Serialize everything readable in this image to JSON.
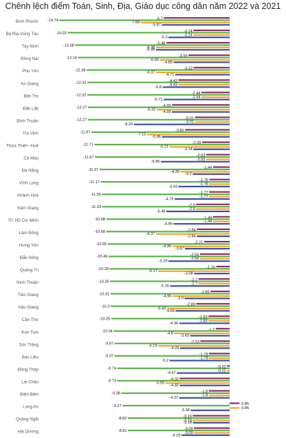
{
  "chart_data": {
    "type": "bar",
    "orientation": "horizontal",
    "title": "Chênh lệch điểm Toán, Sinh, Địa, Giáo dục công dân năm 2022 và 2021",
    "xlim": [
      -15,
      1
    ],
    "categories": [
      "Bình Phước",
      "Bà Rịa-Vũng Tàu",
      "Tây Ninh",
      "Đồng Nai",
      "Phú Yên",
      "An Giang",
      "Bến Tre",
      "Đắk Lắk",
      "Bình Thuận",
      "Trà Vinh",
      "Thừa Thiên -Huế",
      "Cà Mau",
      "Đà Nẵng",
      "Vĩnh Long",
      "Khánh Hoà",
      "Kiên Giang",
      "TP. Hồ Chí Minh",
      "Lâm Đồng",
      "Hưng Yên",
      "Đắk Nông",
      "Quảng Trị",
      "Ninh Thuận",
      "Tiền Giang",
      "Hậu Giang",
      "Cần Thơ",
      "Kon Tum",
      "Sóc Trăng",
      "Bạc Liêu",
      "Đồng Tháp",
      "Lai Châu",
      "Điện Biên",
      "Long An",
      "Quảng Ngãi",
      "Hải Dương"
    ],
    "series": [
      {
        "color": "#8e2a6a",
        "values": [
          -5.7,
          -3.14,
          -5.48,
          -3.56,
          -3.12,
          -4.43,
          -2.44,
          -4.99,
          -3.01,
          -3.86,
          -2.39,
          -2.03,
          -1.44,
          -1.76,
          -1.77,
          -2.9,
          -1.44,
          -2.84,
          -2.21,
          -2.56,
          -1.16,
          -2.7,
          -1.65,
          -2.89,
          -1.83,
          -1.2,
          -2.53,
          -1.78,
          -0.22,
          -4.32,
          -1.8,
          0.85,
          -3.19,
          -3.09
        ]
      },
      {
        "color": "#5cb247",
        "values": [
          -14.74,
          -14.03,
          -13.38,
          -13.14,
          -12.38,
          -12.32,
          -12.32,
          -12.27,
          -12.27,
          -11.97,
          -11.71,
          -11.67,
          -11.27,
          -11.17,
          -11.05,
          -11.03,
          -10.68,
          -10.68,
          -10.55,
          -10.49,
          -10.39,
          -10.35,
          -10.31,
          -10.3,
          -10.25,
          -10.04,
          -9.97,
          -9.97,
          -9.74,
          -9.73,
          -9.38,
          -9.27,
          -8.82,
          -8.81
        ]
      },
      {
        "color": "#f5a623",
        "values": [
          -7.69,
          -3.14,
          -6.38,
          -6.05,
          -6.37,
          -4.43,
          -2.44,
          -6.32,
          -3.01,
          -7.15,
          -5.21,
          -2.03,
          -4.26,
          -1.76,
          -1.77,
          -2.9,
          -1.44,
          -6.37,
          -4.96,
          -2.56,
          -6.17,
          -2.7,
          -4.95,
          -5.43,
          -1.83,
          -4.8,
          -6.19,
          -1.78,
          -0.22,
          -5.55,
          -1.8,
          0.85,
          -3.19,
          -3.09
        ]
      },
      {
        "color": "#3b4fa8",
        "values": [
          -5.87,
          -5.3,
          -6.38,
          -4.85,
          -4.71,
          -5.8,
          -5.71,
          -4.99,
          -8.29,
          -5.86,
          -3.14,
          -5.96,
          -3.2,
          -4.43,
          -4.76,
          -5.48,
          -4.86,
          -2.84,
          -3.87,
          -5.29,
          -3.08,
          -5.16,
          -3.9,
          -4.69,
          -4.36,
          -3.42,
          -4.29,
          -5.2,
          -4.57,
          -4.32,
          -4.37,
          -3.38,
          -3.18,
          -4.18
        ]
      }
    ]
  }
}
